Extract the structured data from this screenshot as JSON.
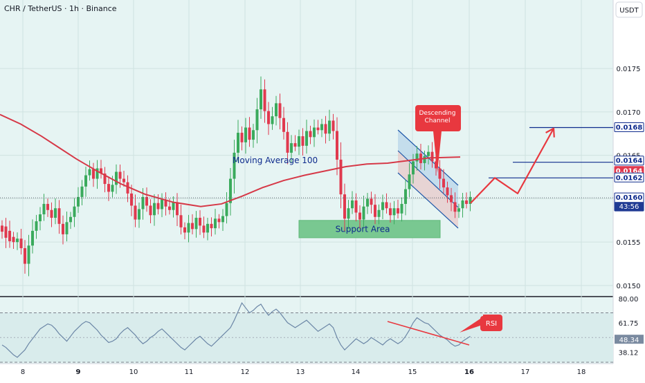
{
  "chart_data": {
    "type": "candlestick",
    "title": "CHR / TetherUS · 1h · Binance",
    "currency_button": "USDT",
    "colors": {
      "background": "#e6f4f3",
      "up": "#3aaa5c",
      "down": "#e0394e",
      "moving_average": "#d63847",
      "channel_fill": "#a8cbe5",
      "support_fill": "#79c891",
      "level_line": "#0d2a8c",
      "arrow": "#e8383f",
      "rsi_line": "#6b86a6"
    },
    "price_axis": {
      "ticks": [
        "0.0175",
        "0.0170",
        "0.0165",
        "0.0160",
        "0.0155",
        "0.0150"
      ],
      "range": [
        0.01488,
        0.01829
      ]
    },
    "time_axis": {
      "labels": [
        "8",
        "9",
        "10",
        "11",
        "12",
        "13",
        "14",
        "15",
        "16",
        "17",
        "18"
      ]
    },
    "moving_average": {
      "label": "Moving Average 100",
      "points": [
        [
          0,
          0.01697
        ],
        [
          30,
          0.01686
        ],
        [
          60,
          0.01672
        ],
        [
          85,
          0.01659
        ],
        [
          110,
          0.01646
        ],
        [
          140,
          0.01632
        ],
        [
          175,
          0.01617
        ],
        [
          210,
          0.01605
        ],
        [
          250,
          0.01596
        ],
        [
          290,
          0.01591
        ],
        [
          320,
          0.01594
        ],
        [
          350,
          0.01603
        ],
        [
          380,
          0.01613
        ],
        [
          410,
          0.01621
        ],
        [
          440,
          0.01627
        ],
        [
          470,
          0.01632
        ],
        [
          500,
          0.01637
        ],
        [
          530,
          0.0164
        ],
        [
          560,
          0.01641
        ],
        [
          590,
          0.01644
        ],
        [
          620,
          0.01647
        ],
        [
          665,
          0.01648
        ]
      ]
    },
    "annotations": {
      "descending_channel": "Descending Channel",
      "support_area": "Support Area",
      "support_range": [
        0.01555,
        0.01575
      ],
      "rsi_callout": "RSI",
      "levels": [
        0.01682,
        0.01642,
        0.01624
      ],
      "projection": [
        [
          680,
          0.01595
        ],
        [
          715,
          0.01624
        ],
        [
          748,
          0.01606
        ],
        [
          800,
          0.01681
        ]
      ]
    },
    "price_labels": [
      {
        "text": "0.0168",
        "style": "outlined"
      },
      {
        "text": "0.0164",
        "style": "outlined"
      },
      {
        "text": "0.0164",
        "style": "red"
      },
      {
        "text": "0.0162",
        "style": "outlined"
      },
      {
        "text": "0.0160",
        "style": "blue",
        "sub": "43:56"
      }
    ],
    "current_price": 0.01601,
    "candles_open_close": [
      [
        0.01569,
        0.01562
      ],
      [
        0.01568,
        0.01555
      ],
      [
        0.01563,
        0.01551
      ],
      [
        0.01556,
        0.0155
      ],
      [
        0.0155,
        0.01554
      ],
      [
        0.01554,
        0.01543
      ],
      [
        0.01543,
        0.01525
      ],
      [
        0.01525,
        0.01546
      ],
      [
        0.01546,
        0.01563
      ],
      [
        0.01563,
        0.01574
      ],
      [
        0.01574,
        0.01582
      ],
      [
        0.01582,
        0.01594
      ],
      [
        0.01594,
        0.01587
      ],
      [
        0.01587,
        0.01578
      ],
      [
        0.01578,
        0.01589
      ],
      [
        0.01589,
        0.01571
      ],
      [
        0.01571,
        0.01559
      ],
      [
        0.01559,
        0.01573
      ],
      [
        0.01573,
        0.01579
      ],
      [
        0.01579,
        0.01591
      ],
      [
        0.01591,
        0.01602
      ],
      [
        0.01602,
        0.01614
      ],
      [
        0.01614,
        0.01627
      ],
      [
        0.01627,
        0.01634
      ],
      [
        0.01634,
        0.01623
      ],
      [
        0.01623,
        0.01635
      ],
      [
        0.01635,
        0.01629
      ],
      [
        0.01629,
        0.01617
      ],
      [
        0.01617,
        0.01608
      ],
      [
        0.01608,
        0.01616
      ],
      [
        0.01616,
        0.01631
      ],
      [
        0.01631,
        0.01623
      ],
      [
        0.01623,
        0.01619
      ],
      [
        0.01619,
        0.01606
      ],
      [
        0.01606,
        0.01592
      ],
      [
        0.01592,
        0.01576
      ],
      [
        0.01576,
        0.01588
      ],
      [
        0.01588,
        0.01602
      ],
      [
        0.01602,
        0.01592
      ],
      [
        0.01592,
        0.01581
      ],
      [
        0.01581,
        0.01595
      ],
      [
        0.01595,
        0.01588
      ],
      [
        0.01588,
        0.01599
      ],
      [
        0.01599,
        0.01591
      ],
      [
        0.01591,
        0.01587
      ],
      [
        0.01587,
        0.01596
      ],
      [
        0.01596,
        0.01581
      ],
      [
        0.01581,
        0.01567
      ],
      [
        0.01567,
        0.01561
      ],
      [
        0.01561,
        0.01572
      ],
      [
        0.01572,
        0.01565
      ],
      [
        0.01565,
        0.01578
      ],
      [
        0.01578,
        0.01569
      ],
      [
        0.01569,
        0.01561
      ],
      [
        0.01561,
        0.01571
      ],
      [
        0.01571,
        0.01566
      ],
      [
        0.01566,
        0.01577
      ],
      [
        0.01577,
        0.01573
      ],
      [
        0.01573,
        0.0158
      ],
      [
        0.0158,
        0.01595
      ],
      [
        0.01595,
        0.01623
      ],
      [
        0.01623,
        0.01653
      ],
      [
        0.01653,
        0.01676
      ],
      [
        0.01676,
        0.01665
      ],
      [
        0.01665,
        0.01682
      ],
      [
        0.01682,
        0.01668
      ],
      [
        0.01668,
        0.01679
      ],
      [
        0.01679,
        0.01703
      ],
      [
        0.01703,
        0.01726
      ],
      [
        0.01726,
        0.01701
      ],
      [
        0.01701,
        0.01686
      ],
      [
        0.01686,
        0.01695
      ],
      [
        0.01695,
        0.0171
      ],
      [
        0.0171,
        0.01693
      ],
      [
        0.01693,
        0.01677
      ],
      [
        0.01677,
        0.01653
      ],
      [
        0.01653,
        0.01664
      ],
      [
        0.01664,
        0.0166
      ],
      [
        0.0166,
        0.01672
      ],
      [
        0.01672,
        0.01661
      ],
      [
        0.01661,
        0.01678
      ],
      [
        0.01678,
        0.01671
      ],
      [
        0.01671,
        0.01682
      ],
      [
        0.01682,
        0.01679
      ],
      [
        0.01679,
        0.01686
      ],
      [
        0.01686,
        0.01675
      ],
      [
        0.01675,
        0.0169
      ],
      [
        0.0169,
        0.01678
      ],
      [
        0.01678,
        0.01645
      ],
      [
        0.01645,
        0.01605
      ],
      [
        0.01605,
        0.01577
      ],
      [
        0.01577,
        0.01589
      ],
      [
        0.01589,
        0.01598
      ],
      [
        0.01598,
        0.01584
      ],
      [
        0.01584,
        0.01576
      ],
      [
        0.01576,
        0.01591
      ],
      [
        0.01591,
        0.016
      ],
      [
        0.016,
        0.01593
      ],
      [
        0.01593,
        0.01579
      ],
      [
        0.01579,
        0.01587
      ],
      [
        0.01587,
        0.01596
      ],
      [
        0.01596,
        0.01589
      ],
      [
        0.01589,
        0.01581
      ],
      [
        0.01581,
        0.01589
      ],
      [
        0.01589,
        0.01583
      ],
      [
        0.01583,
        0.01594
      ],
      [
        0.01594,
        0.01611
      ],
      [
        0.01611,
        0.01628
      ],
      [
        0.01628,
        0.01643
      ],
      [
        0.01643,
        0.01652
      ],
      [
        0.01652,
        0.01641
      ],
      [
        0.01641,
        0.01649
      ],
      [
        0.01649,
        0.01654
      ],
      [
        0.01654,
        0.01643
      ],
      [
        0.01643,
        0.01635
      ],
      [
        0.01635,
        0.01623
      ],
      [
        0.01623,
        0.01613
      ],
      [
        0.01613,
        0.01604
      ],
      [
        0.01604,
        0.01596
      ],
      [
        0.01596,
        0.01585
      ],
      [
        0.01585,
        0.01589
      ],
      [
        0.01589,
        0.01598
      ],
      [
        0.01598,
        0.01594
      ],
      [
        0.01594,
        0.01602
      ]
    ],
    "rsi": {
      "range": [
        30,
        82
      ],
      "ticks": [
        "80.00",
        "61.75",
        "48.34",
        "38.12"
      ],
      "levels": [
        70,
        30
      ],
      "values": [
        44,
        42,
        39,
        36,
        34,
        37,
        40,
        45,
        49,
        53,
        57,
        59,
        61,
        60,
        57,
        53,
        50,
        47,
        51,
        55,
        58,
        61,
        63,
        62,
        59,
        56,
        52,
        49,
        46,
        47,
        49,
        53,
        56,
        58,
        55,
        52,
        48,
        45,
        47,
        50,
        52,
        55,
        57,
        54,
        51,
        48,
        45,
        42,
        40,
        43,
        46,
        49,
        51,
        48,
        45,
        43,
        46,
        49,
        52,
        55,
        58,
        64,
        71,
        78,
        74,
        70,
        72,
        75,
        77,
        72,
        68,
        71,
        73,
        70,
        66,
        62,
        60,
        58,
        60,
        62,
        64,
        61,
        58,
        55,
        57,
        59,
        61,
        58,
        50,
        44,
        40,
        43,
        46,
        49,
        47,
        45,
        47,
        50,
        48,
        46,
        44,
        47,
        49,
        47,
        45,
        47,
        51,
        56,
        62,
        66,
        64,
        62,
        61,
        58,
        55,
        52,
        50,
        48,
        45,
        43,
        44,
        47,
        49,
        51
      ]
    }
  }
}
